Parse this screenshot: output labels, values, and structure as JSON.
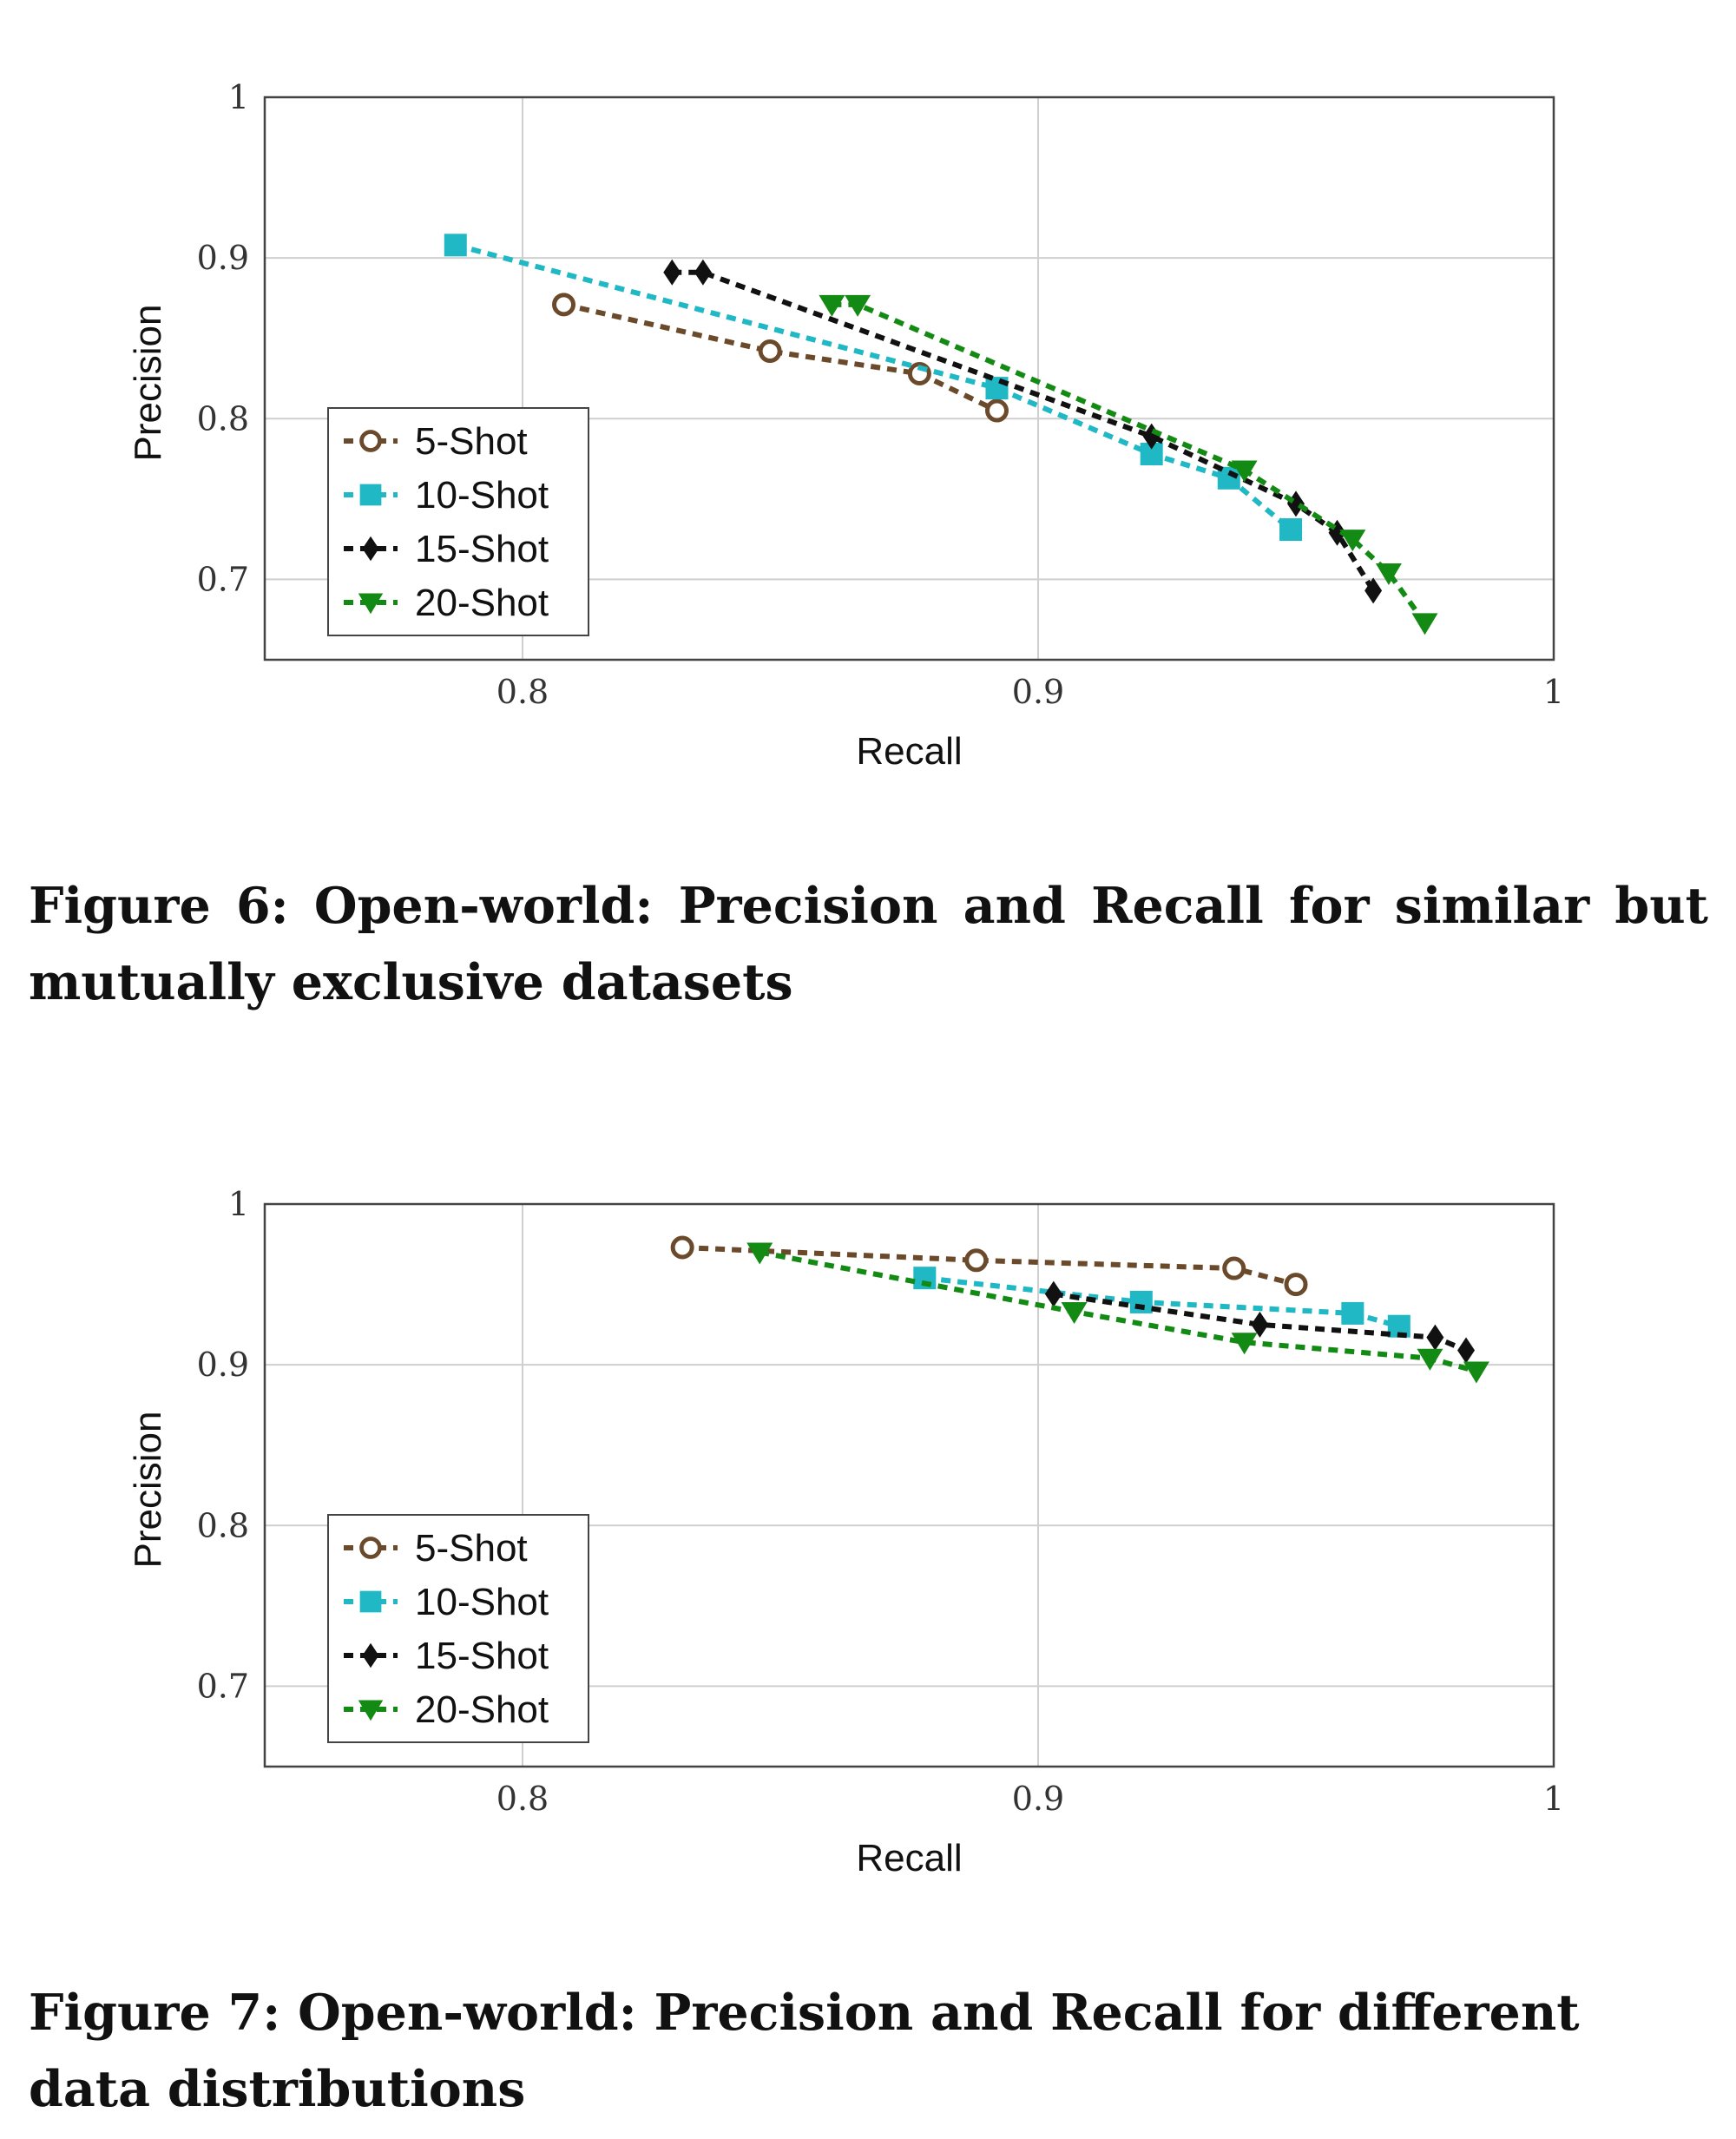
{
  "figures": [
    {
      "caption": "Figure 6: Open-world: Precision and Recall for similar but mutually exclusive datasets",
      "chart_data": {
        "type": "line",
        "xlabel": "Recall",
        "ylabel": "Precision",
        "xlim": [
          0.75,
          1.0
        ],
        "ylim": [
          0.65,
          1.0
        ],
        "xticks": [
          0.8,
          0.9,
          1.0
        ],
        "xtick_labels": [
          "0.8",
          "0.9",
          "1"
        ],
        "yticks": [
          0.7,
          0.8,
          0.9,
          1.0
        ],
        "ytick_labels": [
          "0.7",
          "0.8",
          "0.9",
          "1"
        ],
        "grid": true,
        "legend_position": "bottom-left",
        "series": [
          {
            "name": "5-Shot",
            "color": "#6b4a2b",
            "marker": "circle",
            "x": [
              0.808,
              0.848,
              0.877,
              0.892
            ],
            "y": [
              0.871,
              0.842,
              0.828,
              0.805
            ]
          },
          {
            "name": "10-Shot",
            "color": "#1fb8c4",
            "marker": "square",
            "x": [
              0.787,
              0.892,
              0.922,
              0.937,
              0.949
            ],
            "y": [
              0.908,
              0.819,
              0.778,
              0.763,
              0.731
            ]
          },
          {
            "name": "15-Shot",
            "color": "#111111",
            "marker": "diamond",
            "x": [
              0.829,
              0.835,
              0.922,
              0.95,
              0.958,
              0.965
            ],
            "y": [
              0.891,
              0.891,
              0.789,
              0.747,
              0.729,
              0.693
            ]
          },
          {
            "name": "20-Shot",
            "color": "#138a13",
            "marker": "triangle-down",
            "x": [
              0.86,
              0.865,
              0.94,
              0.961,
              0.968,
              0.975
            ],
            "y": [
              0.871,
              0.871,
              0.768,
              0.725,
              0.704,
              0.673
            ]
          }
        ]
      }
    },
    {
      "caption": "Figure 7: Open-world: Precision and Recall for different data distributions",
      "chart_data": {
        "type": "line",
        "xlabel": "Recall",
        "ylabel": "Precision",
        "xlim": [
          0.75,
          1.0
        ],
        "ylim": [
          0.65,
          1.0
        ],
        "xticks": [
          0.8,
          0.9,
          1.0
        ],
        "xtick_labels": [
          "0.8",
          "0.9",
          "1"
        ],
        "yticks": [
          0.7,
          0.8,
          0.9,
          1.0
        ],
        "ytick_labels": [
          "0.7",
          "0.8",
          "0.9",
          "1"
        ],
        "grid": true,
        "legend_position": "bottom-left",
        "series": [
          {
            "name": "5-Shot",
            "color": "#6b4a2b",
            "marker": "circle",
            "x": [
              0.831,
              0.888,
              0.938,
              0.95
            ],
            "y": [
              0.973,
              0.965,
              0.96,
              0.95
            ]
          },
          {
            "name": "10-Shot",
            "color": "#1fb8c4",
            "marker": "square",
            "x": [
              0.878,
              0.92,
              0.961,
              0.97
            ],
            "y": [
              0.954,
              0.939,
              0.932,
              0.924
            ]
          },
          {
            "name": "15-Shot",
            "color": "#111111",
            "marker": "diamond",
            "x": [
              0.903,
              0.943,
              0.977,
              0.983
            ],
            "y": [
              0.944,
              0.925,
              0.917,
              0.909
            ]
          },
          {
            "name": "20-Shot",
            "color": "#138a13",
            "marker": "triangle-down",
            "x": [
              0.846,
              0.907,
              0.94,
              0.976,
              0.985
            ],
            "y": [
              0.97,
              0.933,
              0.914,
              0.904,
              0.896
            ]
          }
        ]
      }
    }
  ]
}
